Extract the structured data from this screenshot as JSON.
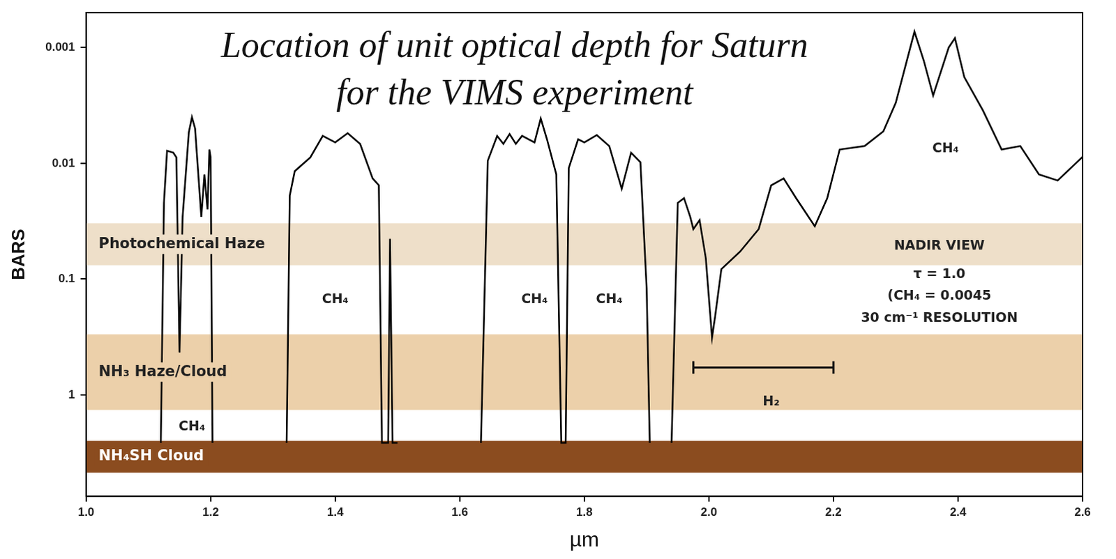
{
  "chart_data": {
    "type": "line",
    "title": "Location of unit optical depth for Saturn\nfor the VIMS experiment",
    "x_label": "µm",
    "y_label": "BARS",
    "x": [
      1.12,
      1.125,
      1.13,
      1.14,
      1.145,
      1.15,
      1.155,
      1.165,
      1.17,
      1.175,
      1.185,
      1.19,
      1.195,
      1.198,
      1.2,
      1.203,
      1.26,
      1.322,
      1.327,
      1.335,
      1.36,
      1.38,
      1.4,
      1.42,
      1.44,
      1.46,
      1.47,
      1.475,
      1.485,
      1.488,
      1.492,
      1.5,
      1.56,
      1.634,
      1.645,
      1.66,
      1.67,
      1.68,
      1.69,
      1.7,
      1.72,
      1.73,
      1.74,
      1.755,
      1.763,
      1.77,
      1.775,
      1.79,
      1.8,
      1.82,
      1.84,
      1.86,
      1.875,
      1.89,
      1.9,
      1.905,
      1.92,
      1.94,
      1.95,
      1.96,
      1.97,
      1.975,
      1.985,
      1.995,
      2.005,
      2.01,
      2.02,
      2.05,
      2.08,
      2.1,
      2.12,
      2.14,
      2.17,
      2.19,
      2.21,
      2.25,
      2.28,
      2.3,
      2.33,
      2.345,
      2.36,
      2.385,
      2.395,
      2.41,
      2.44,
      2.47,
      2.5,
      2.53,
      2.56,
      2.6
    ],
    "values": [
      2.6,
      0.022,
      0.0078,
      0.0081,
      0.0089,
      0.43,
      0.029,
      0.0054,
      0.004,
      0.005,
      0.029,
      0.0125,
      0.025,
      0.0076,
      0.0089,
      2.6,
      null,
      2.6,
      0.019,
      0.0117,
      0.0089,
      0.0058,
      0.0066,
      0.0055,
      0.0068,
      0.0135,
      0.0155,
      2.6,
      2.6,
      0.045,
      2.6,
      2.6,
      null,
      2.6,
      0.0095,
      0.0058,
      0.0068,
      0.0056,
      0.0068,
      0.0058,
      0.0066,
      0.0041,
      0.0062,
      0.0125,
      2.6,
      2.6,
      0.011,
      0.0062,
      0.0066,
      0.0057,
      0.0071,
      0.0166,
      0.0081,
      0.0098,
      0.12,
      2.6,
      null,
      2.6,
      0.022,
      0.02,
      0.029,
      0.037,
      0.031,
      0.066,
      0.32,
      0.21,
      0.082,
      0.058,
      0.037,
      0.0155,
      0.0135,
      0.02,
      0.035,
      0.02,
      0.0076,
      0.0071,
      0.0053,
      0.003,
      0.00073,
      0.0013,
      0.0026,
      0.001,
      0.00083,
      0.0018,
      0.0035,
      0.0076,
      0.0071,
      0.0125,
      0.0141,
      0.0088
    ],
    "color": "#000000",
    "xlim": [
      1.0,
      2.6
    ],
    "xticks": [
      {
        "value": 1.0,
        "label": "1.0"
      },
      1.2,
      1.4,
      1.6,
      1.8,
      {
        "value": 2.0,
        "label": "2.0"
      },
      2.2,
      2.4,
      2.6
    ],
    "ylim": [
      7.5,
      0.0005
    ],
    "yticks": [
      0.001,
      0.01,
      0.1,
      1
    ],
    "log": "y",
    "grid": false,
    "layers": [
      {
        "name": "Photochemical Haze",
        "range": [
          0.033,
          0.076
        ],
        "color": "#eedfc9"
      },
      {
        "name": "NH₃ Haze/Cloud",
        "range": [
          0.3,
          1.35
        ],
        "color": "#ecd0aa"
      },
      {
        "name": "NH₄SH Cloud",
        "range": [
          2.5,
          4.7
        ],
        "color": "#8b4c1f"
      }
    ],
    "annotations": [
      {
        "text": "CH₄",
        "x": 1.4,
        "y": 0.15
      },
      {
        "text": "CH₄",
        "x": 1.72,
        "y": 0.15
      },
      {
        "text": "CH₄",
        "x": 1.84,
        "y": 0.15
      },
      {
        "text": "CH₄",
        "x": 1.17,
        "y": 1.9
      },
      {
        "text": "CH₄",
        "x": 2.38,
        "y": 0.0075
      },
      {
        "text": "H₂",
        "x": 2.1,
        "y": 1.15,
        "span": [
          1.975,
          2.2
        ],
        "span_y": 0.58
      },
      {
        "text": "NADIR VIEW",
        "x": 2.37,
        "y": 0.052
      },
      {
        "text": "τ = 1.0",
        "x": 2.37,
        "y": 0.092
      },
      {
        "text": "(CH₄ = 0.0045",
        "x": 2.37,
        "y": 0.14
      },
      {
        "text": "30 cm⁻¹ RESOLUTION",
        "x": 2.37,
        "y": 0.22
      }
    ]
  }
}
